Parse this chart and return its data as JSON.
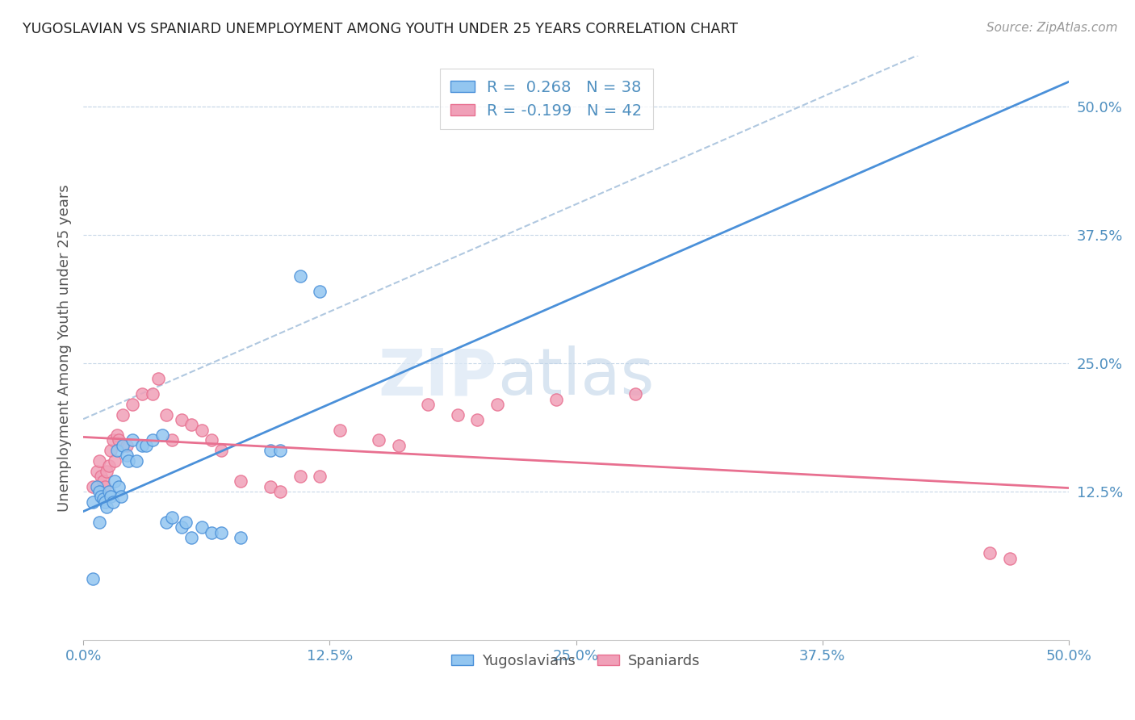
{
  "title": "YUGOSLAVIAN VS SPANIARD UNEMPLOYMENT AMONG YOUTH UNDER 25 YEARS CORRELATION CHART",
  "source": "Source: ZipAtlas.com",
  "ylabel": "Unemployment Among Youth under 25 years",
  "xlim": [
    0.0,
    0.5
  ],
  "ylim": [
    -0.02,
    0.55
  ],
  "xtick_labels": [
    "0.0%",
    "12.5%",
    "25.0%",
    "37.5%",
    "50.0%"
  ],
  "xtick_vals": [
    0.0,
    0.125,
    0.25,
    0.375,
    0.5
  ],
  "ytick_labels_right": [
    "50.0%",
    "37.5%",
    "25.0%",
    "12.5%"
  ],
  "ytick_vals_right": [
    0.5,
    0.375,
    0.25,
    0.125
  ],
  "legend_r1": "R =  0.268   N = 38",
  "legend_r2": "R = -0.199   N = 42",
  "blue_color": "#93c6f0",
  "pink_color": "#f0a0b8",
  "blue_line_color": "#4a90d9",
  "pink_line_color": "#e87090",
  "trend_line_color": "#b0c8e0",
  "axis_color": "#5090c0",
  "grid_color": "#c8d8e8",
  "watermark_zip": "ZIP",
  "watermark_atlas": "atlas",
  "yug_x": [
    0.005,
    0.007,
    0.008,
    0.009,
    0.01,
    0.011,
    0.012,
    0.013,
    0.014,
    0.015,
    0.016,
    0.017,
    0.018,
    0.019,
    0.02,
    0.022,
    0.023,
    0.025,
    0.027,
    0.03,
    0.032,
    0.035,
    0.04,
    0.042,
    0.045,
    0.05,
    0.052,
    0.055,
    0.06,
    0.065,
    0.07,
    0.08,
    0.095,
    0.1,
    0.11,
    0.12,
    0.005,
    0.008
  ],
  "yug_y": [
    0.115,
    0.13,
    0.125,
    0.12,
    0.118,
    0.115,
    0.11,
    0.125,
    0.12,
    0.115,
    0.135,
    0.165,
    0.13,
    0.12,
    0.17,
    0.16,
    0.155,
    0.175,
    0.155,
    0.17,
    0.17,
    0.175,
    0.18,
    0.095,
    0.1,
    0.09,
    0.095,
    0.08,
    0.09,
    0.085,
    0.085,
    0.08,
    0.165,
    0.165,
    0.335,
    0.32,
    0.04,
    0.095
  ],
  "spa_x": [
    0.005,
    0.007,
    0.008,
    0.009,
    0.01,
    0.011,
    0.012,
    0.013,
    0.014,
    0.015,
    0.016,
    0.017,
    0.018,
    0.02,
    0.022,
    0.025,
    0.03,
    0.035,
    0.038,
    0.042,
    0.045,
    0.05,
    0.055,
    0.06,
    0.065,
    0.07,
    0.08,
    0.095,
    0.1,
    0.11,
    0.12,
    0.13,
    0.15,
    0.16,
    0.175,
    0.19,
    0.2,
    0.21,
    0.24,
    0.28,
    0.46,
    0.47
  ],
  "spa_y": [
    0.13,
    0.145,
    0.155,
    0.14,
    0.135,
    0.13,
    0.145,
    0.15,
    0.165,
    0.175,
    0.155,
    0.18,
    0.175,
    0.2,
    0.17,
    0.21,
    0.22,
    0.22,
    0.235,
    0.2,
    0.175,
    0.195,
    0.19,
    0.185,
    0.175,
    0.165,
    0.135,
    0.13,
    0.125,
    0.14,
    0.14,
    0.185,
    0.175,
    0.17,
    0.21,
    0.2,
    0.195,
    0.21,
    0.215,
    0.22,
    0.065,
    0.06
  ]
}
